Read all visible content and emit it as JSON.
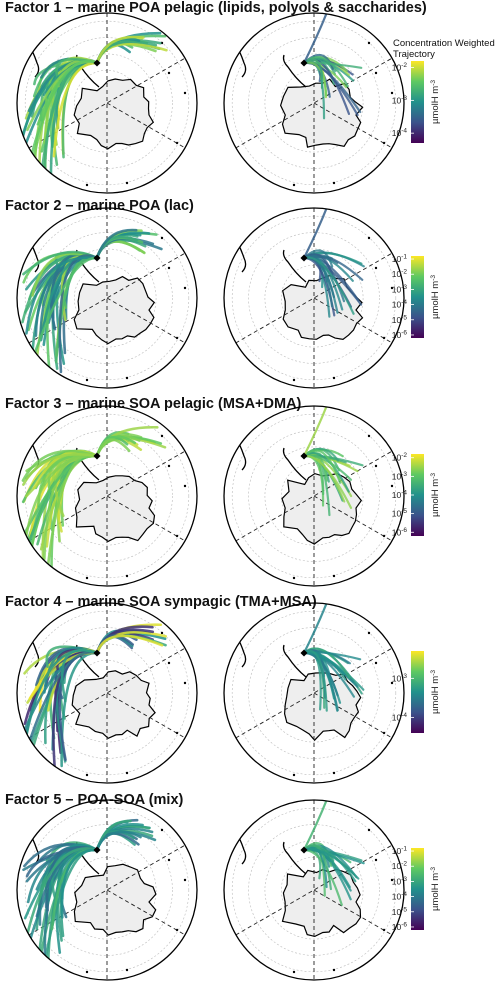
{
  "colorbar_title": "Concentration Weighted Trajectory",
  "unit_label": "µmolH m",
  "unit_exp": "-3",
  "colormap": [
    "#440154",
    "#3b528b",
    "#21918c",
    "#5ec962",
    "#fde725"
  ],
  "land_color": "#eeeeee",
  "factors": [
    {
      "title": "Factor 1 – marine POA pelagic (lipids, polyols & saccharides)",
      "colorbar": {
        "min_exp": -4.3,
        "max_exp": -1.8,
        "ticks": [
          {
            "base": "10",
            "exp": "-2",
            "value": -2
          },
          {
            "base": "10",
            "exp": "-3",
            "value": -3
          },
          {
            "base": "10",
            "exp": "-4",
            "value": -4
          }
        ]
      },
      "left_trajectory": {
        "levels": [
          0.9,
          0.8,
          0.7,
          0.6,
          0.5
        ]
      },
      "right_trajectory": {
        "levels": [
          0.6,
          0.3,
          0.8
        ]
      }
    },
    {
      "title": "Factor 2 – marine POA (lac)",
      "colorbar": {
        "min_exp": -6.2,
        "max_exp": -0.8,
        "ticks": [
          {
            "base": "10",
            "exp": "-1",
            "value": -1
          },
          {
            "base": "10",
            "exp": "-2",
            "value": -2
          },
          {
            "base": "10",
            "exp": "-3",
            "value": -3
          },
          {
            "base": "10",
            "exp": "-4",
            "value": -4
          },
          {
            "base": "10",
            "exp": "-5",
            "value": -5
          },
          {
            "base": "10",
            "exp": "-6",
            "value": -6
          }
        ]
      },
      "left_trajectory": {
        "levels": [
          0.4,
          0.5,
          0.7,
          0.8,
          0.6
        ]
      },
      "right_trajectory": {
        "levels": [
          0.5,
          0.3,
          0.4
        ]
      }
    },
    {
      "title": "Factor 3 – marine SOA pelagic (MSA+DMA)",
      "colorbar": {
        "min_exp": -6.2,
        "max_exp": -1.8,
        "ticks": [
          {
            "base": "10",
            "exp": "-2",
            "value": -2
          },
          {
            "base": "10",
            "exp": "-3",
            "value": -3
          },
          {
            "base": "10",
            "exp": "-4",
            "value": -4
          },
          {
            "base": "10",
            "exp": "-5",
            "value": -5
          },
          {
            "base": "10",
            "exp": "-6",
            "value": -6
          }
        ]
      },
      "left_trajectory": {
        "levels": [
          0.8,
          0.85,
          0.9,
          0.7,
          0.75
        ]
      },
      "right_trajectory": {
        "levels": [
          0.7,
          0.85,
          0.6
        ]
      }
    },
    {
      "title": "Factor 4 – marine SOA sympagic (TMA+MSA)",
      "colorbar": {
        "min_exp": -4.4,
        "max_exp": -2.3,
        "ticks": [
          {
            "base": "10",
            "exp": "-3",
            "value": -3
          },
          {
            "base": "10",
            "exp": "-4",
            "value": -4
          }
        ]
      },
      "left_trajectory": {
        "levels": [
          0.95,
          0.6,
          0.5,
          0.15,
          0.3
        ]
      },
      "right_trajectory": {
        "levels": [
          0.55,
          0.45,
          0.5
        ]
      }
    },
    {
      "title": "Factor 5 – POA-SOA (mix)",
      "colorbar": {
        "min_exp": -6.2,
        "max_exp": -0.8,
        "ticks": [
          {
            "base": "10",
            "exp": "-1",
            "value": -1
          },
          {
            "base": "10",
            "exp": "-2",
            "value": -2
          },
          {
            "base": "10",
            "exp": "-3",
            "value": -3
          },
          {
            "base": "10",
            "exp": "-4",
            "value": -4
          },
          {
            "base": "10",
            "exp": "-5",
            "value": -5
          },
          {
            "base": "10",
            "exp": "-6",
            "value": -6
          }
        ]
      },
      "left_trajectory": {
        "levels": [
          0.45,
          0.55,
          0.5,
          0.35,
          0.6
        ]
      },
      "right_trajectory": {
        "levels": [
          0.55,
          0.65,
          0.5
        ]
      }
    }
  ]
}
